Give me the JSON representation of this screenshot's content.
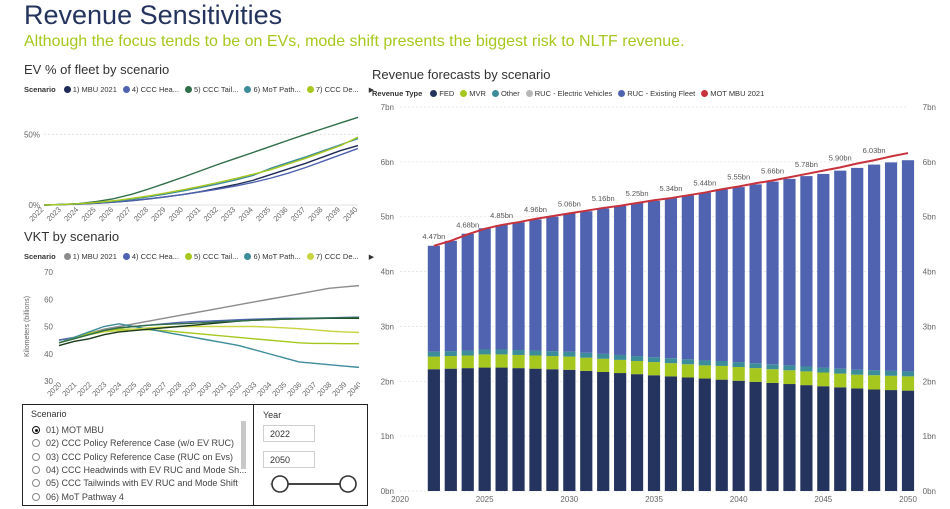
{
  "title": "Revenue Sensitivities",
  "subtitle": "Although the focus tends to be on EVs, mode shift presents the biggest risk to NLTF revenue.",
  "colors": {
    "fed": "#24345e",
    "mvr": "#a6c81e",
    "other": "#3d8c99",
    "ruc_ev": "#b8b8b8",
    "ruc_existing": "#4f63b0",
    "mot_mbu": "#c8323c",
    "title": "#24345e",
    "subtitle": "#a6c81e"
  },
  "ev_panel": {
    "title": "EV % of fleet by scenario",
    "legend_label": "Scenario",
    "legend": [
      {
        "name": "1) MBU 2021",
        "color": "#1d2b55"
      },
      {
        "name": "4) CCC Hea...",
        "color": "#4f63b0"
      },
      {
        "name": "5) CCC Tail...",
        "color": "#2f6e49"
      },
      {
        "name": "6) MoT Path...",
        "color": "#3d8c99"
      },
      {
        "name": "7) CCC De...",
        "color": "#a6c81e"
      }
    ],
    "more_icon": "triangle-right-icon"
  },
  "vkt_panel": {
    "title": "VKT by scenario",
    "legend_label": "Scenario",
    "legend": [
      {
        "name": "1) MBU 2021",
        "color": "#8c8c8c"
      },
      {
        "name": "4) CCC Hea...",
        "color": "#4f63b0"
      },
      {
        "name": "5) CCC Tail...",
        "color": "#a6c81e"
      },
      {
        "name": "6) MoT Path...",
        "color": "#3d8c99"
      },
      {
        "name": "7) CCC De...",
        "color": "#c8d440"
      }
    ],
    "more_icon": "triangle-right-icon"
  },
  "revenue_panel": {
    "title": "Revenue forecasts by scenario",
    "legend_label": "Revenue Type",
    "legend": [
      {
        "name": "FED",
        "color": "#24345e"
      },
      {
        "name": "MVR",
        "color": "#a6c81e"
      },
      {
        "name": "Other",
        "color": "#3d8c99"
      },
      {
        "name": "RUC - Electric Vehicles",
        "color": "#b8b8b8"
      },
      {
        "name": "RUC - Existing Fleet",
        "color": "#4f63b0"
      },
      {
        "name": "MOT MBU 2021",
        "color": "#c8323c"
      }
    ]
  },
  "scenario_slicer": {
    "header": "Scenario",
    "options": [
      {
        "label": "01) MOT MBU",
        "selected": true
      },
      {
        "label": "02) CCC Policy Reference Case (w/o EV RUC)",
        "selected": false
      },
      {
        "label": "03) CCC Policy Reference Case (RUC on Evs)",
        "selected": false
      },
      {
        "label": "04) CCC Headwinds with EV RUC and Mode Sh...",
        "selected": false
      },
      {
        "label": "05) CCC Tailwinds with EV RUC and Mode Shift",
        "selected": false
      },
      {
        "label": "06) MoT Pathway 4",
        "selected": false
      }
    ]
  },
  "year_slicer": {
    "header": "Year",
    "start": "2022",
    "end": "2050",
    "range_fraction": [
      0,
      1
    ]
  },
  "chart_data": [
    {
      "id": "ev_share",
      "type": "line",
      "title": "EV % of fleet by scenario",
      "x": [
        2022,
        2023,
        2024,
        2025,
        2026,
        2027,
        2028,
        2029,
        2030,
        2031,
        2032,
        2033,
        2034,
        2035,
        2036,
        2037,
        2038,
        2039,
        2040
      ],
      "ylim": [
        0,
        70
      ],
      "yticks": [
        0,
        50
      ],
      "ytick_labels": [
        "0%",
        "50%"
      ],
      "grid": true,
      "series": [
        {
          "name": "1) MBU 2021",
          "color": "#1d2b55",
          "values": [
            0,
            0.3,
            0.7,
            1.2,
            2,
            3,
            4.3,
            5.8,
            7.5,
            9.5,
            12,
            14.5,
            17.5,
            21.5,
            25.5,
            29.5,
            34,
            38.5,
            42
          ]
        },
        {
          "name": "4) CCC Hea...",
          "color": "#4f63b0",
          "values": [
            0,
            0.3,
            0.7,
            1.3,
            2.1,
            3.1,
            4.4,
            5.9,
            7.5,
            9.3,
            11.3,
            13.5,
            16,
            19,
            22.5,
            26.5,
            31,
            35.5,
            40
          ]
        },
        {
          "name": "5) CCC Tail...",
          "color": "#2f6e49",
          "values": [
            0,
            0.4,
            1,
            2.4,
            4.5,
            7.5,
            11.3,
            15.5,
            19.8,
            24.3,
            28.8,
            33,
            37.2,
            41.5,
            45.8,
            50,
            54,
            58,
            62
          ]
        },
        {
          "name": "6) MoT Path...",
          "color": "#3d8c99",
          "values": [
            0,
            0.3,
            0.8,
            1.6,
            2.6,
            4,
            5.8,
            7.8,
            10,
            12.4,
            15,
            17.8,
            21,
            26,
            30,
            34,
            38.3,
            42.6,
            47
          ]
        },
        {
          "name": "7) CCC De...",
          "color": "#a6c81e",
          "values": [
            0,
            0.3,
            0.9,
            1.8,
            3,
            4.6,
            6.4,
            8.5,
            10.8,
            13.3,
            16,
            18.8,
            21.8,
            25,
            29,
            33,
            37.5,
            42,
            48
          ]
        }
      ]
    },
    {
      "id": "vkt",
      "type": "line",
      "title": "VKT by scenario",
      "ylabel": "Kilometers (billions)",
      "x": [
        2020,
        2021,
        2022,
        2023,
        2024,
        2025,
        2026,
        2027,
        2028,
        2029,
        2030,
        2031,
        2032,
        2033,
        2034,
        2035,
        2036,
        2037,
        2038,
        2039,
        2040
      ],
      "ylim": [
        30,
        70
      ],
      "yticks": [
        30,
        40,
        50,
        60,
        70
      ],
      "grid": false,
      "series": [
        {
          "name": "1) MBU 2021",
          "color": "#8c8c8c",
          "values": [
            45,
            46,
            47.5,
            49,
            50,
            51,
            52,
            53,
            54,
            55,
            56,
            57,
            58,
            59,
            60,
            61,
            62,
            63,
            64,
            64.5,
            65
          ]
        },
        {
          "name": "4) CCC Hea...",
          "color": "#4f63b0",
          "values": [
            45,
            46,
            47,
            48.5,
            49.5,
            50,
            50.5,
            51,
            51.5,
            51.8,
            52,
            52.2,
            52.5,
            52.7,
            52.8,
            53,
            53,
            53.1,
            53.2,
            53.3,
            53.4
          ]
        },
        {
          "name": "5) CCC Tail...",
          "color": "#a6c81e",
          "values": [
            44,
            46,
            47.5,
            48.5,
            49,
            49,
            48.8,
            48.5,
            48,
            47.5,
            47,
            46.5,
            46,
            45.5,
            45,
            44.5,
            44,
            43.8,
            43.8,
            43.7,
            43.7
          ]
        },
        {
          "name": "6) MoT Path...",
          "color": "#3d8c99",
          "values": [
            44,
            46,
            48,
            50,
            51,
            50,
            49,
            48,
            47,
            46,
            45,
            44,
            43,
            41.5,
            40,
            38.5,
            37,
            36.5,
            36,
            35.5,
            35
          ]
        },
        {
          "name": "7) CCC De...",
          "color": "#c8d440",
          "values": [
            44,
            45.5,
            47,
            48,
            48.5,
            49,
            49.5,
            49.8,
            50,
            50,
            50,
            50,
            50,
            50,
            49.8,
            49.5,
            49.2,
            48.8,
            48.3,
            48,
            47.8
          ]
        },
        {
          "name": "",
          "color": "#1a3a1a",
          "values": [
            43,
            44.5,
            45.5,
            47,
            48,
            48.5,
            49,
            49.5,
            50,
            50.5,
            51,
            51.5,
            52,
            52.3,
            52.5,
            52.7,
            52.8,
            52.9,
            53,
            53,
            53
          ]
        },
        {
          "name": "",
          "color": "#2f6e49",
          "values": [
            44,
            45.5,
            47,
            48.5,
            49.5,
            50,
            50.5,
            50.8,
            51,
            51.2,
            51.5,
            51.8,
            52,
            52.3,
            52.5,
            52.7,
            52.9,
            53,
            53.1,
            53.2,
            53.3
          ]
        }
      ]
    },
    {
      "id": "revenue",
      "type": "bar",
      "stacked": true,
      "title": "Revenue forecasts by scenario",
      "x": [
        2022,
        2023,
        2024,
        2025,
        2026,
        2027,
        2028,
        2029,
        2030,
        2031,
        2032,
        2033,
        2034,
        2035,
        2036,
        2037,
        2038,
        2039,
        2040,
        2041,
        2042,
        2043,
        2044,
        2045,
        2046,
        2047,
        2048,
        2049,
        2050
      ],
      "xlim": [
        2020,
        2050
      ],
      "xticks": [
        2020,
        2025,
        2030,
        2035,
        2040,
        2045,
        2050
      ],
      "ylim": [
        0,
        7
      ],
      "yticks": [
        0,
        1,
        2,
        3,
        4,
        5,
        6,
        7
      ],
      "ytick_labels": [
        "0bn",
        "1bn",
        "2bn",
        "3bn",
        "4bn",
        "5bn",
        "6bn",
        "7bn"
      ],
      "series": [
        {
          "name": "FED",
          "color": "#24345e",
          "values": [
            2.22,
            2.23,
            2.24,
            2.25,
            2.25,
            2.24,
            2.23,
            2.22,
            2.21,
            2.19,
            2.17,
            2.15,
            2.13,
            2.11,
            2.09,
            2.07,
            2.05,
            2.03,
            2.01,
            1.99,
            1.97,
            1.95,
            1.93,
            1.91,
            1.89,
            1.87,
            1.85,
            1.84,
            1.83
          ]
        },
        {
          "name": "MVR",
          "color": "#a6c81e",
          "values": [
            0.23,
            0.23,
            0.23,
            0.24,
            0.24,
            0.24,
            0.24,
            0.24,
            0.24,
            0.24,
            0.24,
            0.24,
            0.24,
            0.24,
            0.24,
            0.24,
            0.24,
            0.25,
            0.25,
            0.25,
            0.25,
            0.25,
            0.25,
            0.25,
            0.25,
            0.25,
            0.26,
            0.26,
            0.26
          ]
        },
        {
          "name": "Other",
          "color": "#3d8c99",
          "values": [
            0.09,
            0.09,
            0.09,
            0.09,
            0.09,
            0.09,
            0.09,
            0.09,
            0.09,
            0.09,
            0.09,
            0.09,
            0.09,
            0.09,
            0.09,
            0.09,
            0.09,
            0.09,
            0.09,
            0.09,
            0.09,
            0.09,
            0.09,
            0.09,
            0.09,
            0.09,
            0.09,
            0.09,
            0.09
          ]
        },
        {
          "name": "RUC - Electric Vehicles",
          "color": "#b8b8b8",
          "values": [
            0,
            0,
            0,
            0,
            0,
            0,
            0,
            0,
            0,
            0,
            0,
            0,
            0,
            0,
            0,
            0,
            0,
            0,
            0,
            0,
            0,
            0,
            0,
            0,
            0,
            0,
            0,
            0,
            0
          ]
        },
        {
          "name": "RUC - Existing Fleet",
          "color": "#4f63b0",
          "values": [
            1.93,
            2.01,
            2.13,
            2.21,
            2.27,
            2.33,
            2.39,
            2.45,
            2.52,
            2.58,
            2.65,
            2.72,
            2.79,
            2.85,
            2.92,
            2.99,
            3.06,
            3.13,
            3.19,
            3.26,
            3.33,
            3.4,
            3.47,
            3.53,
            3.61,
            3.68,
            3.75,
            3.8,
            3.85
          ]
        }
      ],
      "line": {
        "name": "MOT MBU 2021",
        "color": "#c8323c",
        "values": [
          4.47,
          4.56,
          4.68,
          4.78,
          4.85,
          4.9,
          4.96,
          5.01,
          5.06,
          5.11,
          5.16,
          5.2,
          5.25,
          5.3,
          5.34,
          5.39,
          5.44,
          5.5,
          5.55,
          5.61,
          5.66,
          5.72,
          5.78,
          5.84,
          5.9,
          5.97,
          6.03,
          6.1,
          6.16
        ]
      },
      "data_labels": [
        {
          "x": 2022,
          "text": "4.47bn"
        },
        {
          "x": 2024,
          "text": "4.68bn"
        },
        {
          "x": 2026,
          "text": "4.85bn"
        },
        {
          "x": 2028,
          "text": "4.96bn"
        },
        {
          "x": 2030,
          "text": "5.06bn"
        },
        {
          "x": 2032,
          "text": "5.16bn"
        },
        {
          "x": 2034,
          "text": "5.25bn"
        },
        {
          "x": 2036,
          "text": "5.34bn"
        },
        {
          "x": 2038,
          "text": "5.44bn"
        },
        {
          "x": 2040,
          "text": "5.55bn"
        },
        {
          "x": 2042,
          "text": "5.66bn"
        },
        {
          "x": 2044,
          "text": "5.78bn"
        },
        {
          "x": 2046,
          "text": "5.90bn"
        },
        {
          "x": 2048,
          "text": "6.03bn"
        }
      ]
    }
  ]
}
